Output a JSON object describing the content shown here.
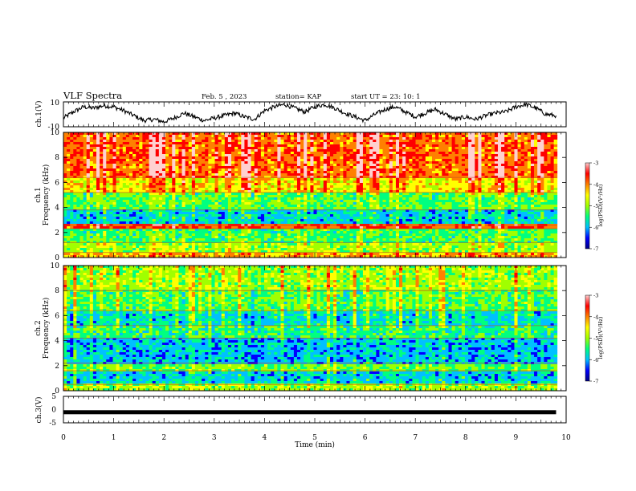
{
  "header": {
    "title": "VLF Spectra",
    "date": "Feb. 5 , 2023",
    "station": "station= KAP",
    "start": "start  UT =   23: 10: 1"
  },
  "colors": {
    "background": "#ffffff",
    "trace": "#000000",
    "colormap": [
      "#000080",
      "#0000ff",
      "#00c0ff",
      "#00ff80",
      "#a0ff00",
      "#ffff00",
      "#ff8000",
      "#ff0000",
      "#ffd0d0"
    ]
  },
  "chart_data": [
    {
      "type": "line",
      "panel": "ch1-waveform",
      "ylabel": "ch.1(V)",
      "ylim": [
        -10,
        10
      ],
      "yticks": [
        -10,
        10
      ],
      "xlim": [
        0,
        10
      ],
      "x": [
        0,
        0.2,
        0.4,
        0.6,
        0.8,
        1.0,
        1.2,
        1.4,
        1.6,
        1.8,
        2.0,
        2.2,
        2.4,
        2.6,
        2.8,
        3.0,
        3.2,
        3.4,
        3.6,
        3.8,
        4.0,
        4.2,
        4.4,
        4.6,
        4.8,
        5.0,
        5.2,
        5.4,
        5.6,
        5.8,
        6.0,
        6.2,
        6.4,
        6.6,
        6.8,
        7.0,
        7.2,
        7.4,
        7.6,
        7.8,
        8.0,
        8.2,
        8.4,
        8.6,
        8.8,
        9.0,
        9.2,
        9.4,
        9.6,
        9.8
      ],
      "values": [
        -3,
        2,
        6,
        5,
        7,
        6,
        3,
        -1,
        -5,
        -4,
        -6,
        -3,
        1,
        -2,
        -5,
        -3,
        -1,
        1,
        -2,
        -4,
        3,
        6,
        8,
        5,
        2,
        6,
        8,
        5,
        1,
        -2,
        -5,
        0,
        4,
        6,
        2,
        -2,
        1,
        4,
        0,
        -4,
        -2,
        -4,
        -1,
        1,
        2,
        6,
        8,
        5,
        0,
        -1
      ]
    },
    {
      "type": "heatmap",
      "panel": "ch1-spectrogram",
      "ylabel_top": "ch.1",
      "ylabel": "Frequency (kHz)",
      "ylim": [
        0,
        10
      ],
      "yticks": [
        0,
        2,
        4,
        6,
        8,
        10
      ],
      "xlim": [
        0,
        10
      ],
      "colorbar": {
        "label": "log(PSD)(V²/Hz)",
        "range": [
          -7,
          -3
        ],
        "ticks": [
          -3,
          -4,
          -5,
          -6,
          -7
        ]
      },
      "bands_khz": [
        {
          "from": 0,
          "to": 0.4,
          "level": -4.2
        },
        {
          "from": 0.4,
          "to": 1.2,
          "level": -5.0
        },
        {
          "from": 1.2,
          "to": 2.3,
          "level": -5.4
        },
        {
          "from": 2.3,
          "to": 2.6,
          "level": -3.8
        },
        {
          "from": 2.6,
          "to": 3.8,
          "level": -5.9
        },
        {
          "from": 3.8,
          "to": 5.2,
          "level": -5.3
        },
        {
          "from": 5.2,
          "to": 6.4,
          "level": -4.5
        },
        {
          "from": 6.4,
          "to": 10,
          "level": -3.9
        }
      ]
    },
    {
      "type": "heatmap",
      "panel": "ch2-spectrogram",
      "ylabel_top": "ch.2",
      "ylabel": "Frequency (kHz)",
      "ylim": [
        0,
        10
      ],
      "yticks": [
        0,
        2,
        4,
        6,
        8,
        10
      ],
      "xlim": [
        0,
        10
      ],
      "colorbar": {
        "label": "log(PSD)(V²/Hz)",
        "range": [
          -7,
          -3
        ],
        "ticks": [
          -3,
          -4,
          -5,
          -6,
          -7
        ]
      },
      "bands_khz": [
        {
          "from": 0,
          "to": 0.5,
          "level": -5.0
        },
        {
          "from": 0.5,
          "to": 1.6,
          "level": -5.9
        },
        {
          "from": 1.6,
          "to": 2.2,
          "level": -5.2
        },
        {
          "from": 2.2,
          "to": 4.2,
          "level": -6.0
        },
        {
          "from": 4.2,
          "to": 5.2,
          "level": -5.5
        },
        {
          "from": 5.2,
          "to": 6.4,
          "level": -5.8
        },
        {
          "from": 6.4,
          "to": 8.0,
          "level": -5.3
        },
        {
          "from": 8.0,
          "to": 10,
          "level": -5.0
        }
      ]
    },
    {
      "type": "line",
      "panel": "ch3-waveform",
      "ylabel": "ch.3(V)",
      "ylim": [
        -5,
        5
      ],
      "yticks": [
        -5,
        0,
        5
      ],
      "xlim": [
        0,
        10
      ],
      "xlabel": "Time (min)",
      "xticks": [
        0,
        1,
        2,
        3,
        4,
        5,
        6,
        7,
        8,
        9,
        10
      ],
      "x": [
        0,
        9.8
      ],
      "values": [
        -1,
        -1
      ]
    }
  ]
}
